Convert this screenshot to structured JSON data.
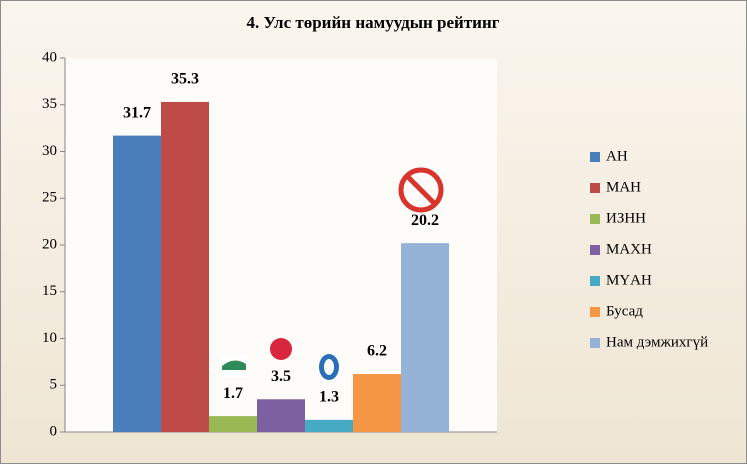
{
  "chart_data": {
    "type": "bar",
    "title": "4. Улс төрийн намуудын рейтинг",
    "series": [
      {
        "name": "АН",
        "color": "#4a7ebb",
        "values": [
          31.7
        ]
      },
      {
        "name": "МАН",
        "color": "#be4b48",
        "values": [
          35.3
        ]
      },
      {
        "name": "ИЗНН",
        "color": "#98b954",
        "values": [
          1.7
        ]
      },
      {
        "name": "МАХН",
        "color": "#7d60a0",
        "values": [
          3.5
        ]
      },
      {
        "name": "МҮАН",
        "color": "#46aac5",
        "values": [
          1.3
        ]
      },
      {
        "name": "Бусад",
        "color": "#f59645",
        "values": [
          6.2
        ]
      },
      {
        "name": "Нам дэмжихгүй",
        "color": "#95b3d7",
        "values": [
          20.2
        ]
      }
    ],
    "ylim": [
      0,
      40
    ],
    "yticks": [
      0,
      5,
      10,
      15,
      20,
      25,
      30,
      35,
      40
    ],
    "grid": false,
    "legend": "right"
  }
}
